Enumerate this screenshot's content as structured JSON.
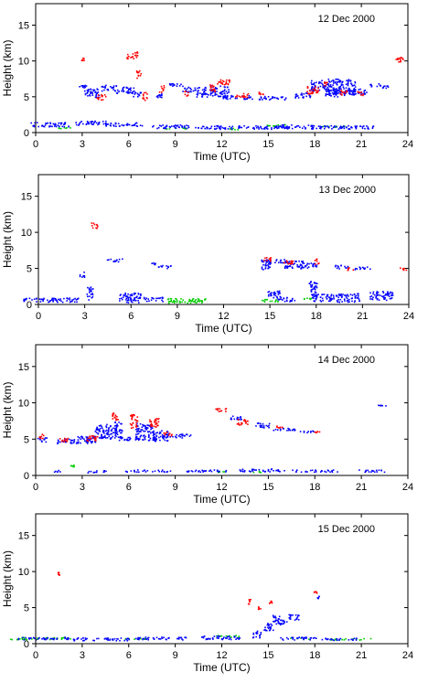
{
  "chart_data": [
    {
      "type": "scatter",
      "title": "12 Dec 2000",
      "xlabel": "Time (UTC)",
      "ylabel": "Height (km)",
      "xlim": [
        0,
        24
      ],
      "ylim": [
        0,
        18
      ],
      "xticks": [
        "0",
        "3",
        "6",
        "9",
        "12",
        "15",
        "18",
        "21",
        "24"
      ],
      "yticks": [
        "0",
        "5",
        "10",
        "15"
      ],
      "colors": {
        "blue": "#0000ff",
        "red": "#ff0000",
        "green": "#00cc00"
      },
      "blue": [
        [
          3.0,
          6.6,
          0.5,
          0.6
        ],
        [
          3.6,
          5.6,
          1.0,
          1.2
        ],
        [
          4.7,
          6.3,
          1.0,
          0.8
        ],
        [
          5.8,
          6.0,
          1.3,
          0.9
        ],
        [
          6.5,
          5.4,
          0.6,
          0.6
        ],
        [
          7.8,
          5.2,
          0.6,
          0.6
        ],
        [
          9.0,
          6.7,
          1.0,
          0.5
        ],
        [
          10.2,
          6.1,
          1.5,
          0.7
        ],
        [
          10.8,
          5.4,
          0.9,
          0.8
        ],
        [
          11.8,
          5.8,
          1.3,
          1.6
        ],
        [
          13.0,
          5.0,
          2.0,
          0.5
        ],
        [
          15.2,
          4.9,
          1.9,
          0.5
        ],
        [
          17.2,
          5.3,
          1.0,
          0.8
        ],
        [
          18.3,
          6.6,
          1.3,
          1.5
        ],
        [
          19.1,
          5.6,
          0.9,
          1.2
        ],
        [
          19.7,
          6.4,
          1.8,
          2.3
        ],
        [
          20.7,
          5.8,
          1.2,
          0.8
        ],
        [
          21.9,
          6.7,
          0.8,
          0.4
        ],
        [
          22.5,
          6.5,
          0.7,
          0.4
        ],
        [
          0.9,
          1.2,
          2.5,
          0.6
        ],
        [
          3.5,
          1.4,
          2.0,
          0.6
        ],
        [
          5.6,
          1.2,
          2.8,
          0.5
        ],
        [
          8.6,
          0.9,
          2.5,
          0.5
        ],
        [
          11.4,
          0.8,
          2.5,
          0.5
        ],
        [
          14.2,
          0.8,
          2.5,
          0.5
        ],
        [
          17.0,
          0.9,
          3.0,
          0.6
        ],
        [
          20.0,
          0.8,
          3.6,
          0.5
        ]
      ],
      "red": [
        [
          3.0,
          10.2,
          0.2,
          0.6
        ],
        [
          4.2,
          5.0,
          0.6,
          0.8
        ],
        [
          6.2,
          10.9,
          0.7,
          1.0
        ],
        [
          6.6,
          8.2,
          0.3,
          1.2
        ],
        [
          7.0,
          5.2,
          0.3,
          1.2
        ],
        [
          8.1,
          6.2,
          0.3,
          1.0
        ],
        [
          9.7,
          5.5,
          0.3,
          0.8
        ],
        [
          11.4,
          6.2,
          0.4,
          1.2
        ],
        [
          12.1,
          7.1,
          0.9,
          0.8
        ],
        [
          13.3,
          5.3,
          0.9,
          0.6
        ],
        [
          14.5,
          5.6,
          0.5,
          0.4
        ],
        [
          17.8,
          6.0,
          0.8,
          1.1
        ],
        [
          18.6,
          6.9,
          0.3,
          0.6
        ],
        [
          19.8,
          5.7,
          0.5,
          0.8
        ],
        [
          20.9,
          5.5,
          0.4,
          0.6
        ],
        [
          23.4,
          10.3,
          0.6,
          0.7
        ]
      ],
      "green": [
        [
          2.0,
          0.7,
          1.2,
          0.2
        ],
        [
          9.0,
          0.7,
          1.5,
          0.2
        ],
        [
          12.5,
          0.6,
          1.0,
          0.2
        ],
        [
          15.5,
          1.1,
          1.3,
          0.3
        ],
        [
          19.1,
          0.9,
          1.6,
          0.2
        ]
      ]
    },
    {
      "type": "scatter",
      "title": "13 Dec 2000",
      "xlabel": "Time (UTC)",
      "ylabel": "Height (km)",
      "xlim": [
        0,
        24
      ],
      "ylim": [
        0,
        18
      ],
      "xticks": [
        "0",
        "3",
        "6",
        "9",
        "12",
        "15",
        "18",
        "21",
        "24"
      ],
      "yticks": [
        "0",
        "5",
        "10",
        "15"
      ],
      "colors": {
        "blue": "#0000ff",
        "red": "#ff0000",
        "green": "#00cc00"
      },
      "blue": [
        [
          2.8,
          4.3,
          0.3,
          0.9
        ],
        [
          3.3,
          1.6,
          0.4,
          1.8
        ],
        [
          4.8,
          6.2,
          1.2,
          0.4
        ],
        [
          7.4,
          5.7,
          0.4,
          0.3
        ],
        [
          8.1,
          5.3,
          0.9,
          0.4
        ],
        [
          0.8,
          0.7,
          3.6,
          0.6
        ],
        [
          5.9,
          1.0,
          1.4,
          1.4
        ],
        [
          7.4,
          0.8,
          1.3,
          0.6
        ],
        [
          14.7,
          5.6,
          0.6,
          1.4
        ],
        [
          15.3,
          6.1,
          1.3,
          0.6
        ],
        [
          16.5,
          5.6,
          1.2,
          1.2
        ],
        [
          17.4,
          5.5,
          1.2,
          0.7
        ],
        [
          15.2,
          1.5,
          0.9,
          1.0
        ],
        [
          16.0,
          0.8,
          1.2,
          0.6
        ],
        [
          17.8,
          2.2,
          0.6,
          2.2
        ],
        [
          18.4,
          1.0,
          1.5,
          1.0
        ],
        [
          19.6,
          5.3,
          0.9,
          0.5
        ],
        [
          21.0,
          5.1,
          1.2,
          0.4
        ],
        [
          20.0,
          1.0,
          1.6,
          1.2
        ],
        [
          22.2,
          1.3,
          1.5,
          1.3
        ]
      ],
      "red": [
        [
          3.6,
          11.0,
          0.4,
          0.8
        ],
        [
          14.8,
          6.4,
          0.5,
          0.6
        ],
        [
          16.2,
          6.0,
          0.7,
          0.6
        ],
        [
          18.0,
          6.0,
          0.3,
          0.8
        ],
        [
          20.2,
          5.0,
          0.4,
          0.4
        ],
        [
          23.6,
          5.0,
          0.5,
          0.4
        ]
      ],
      "green": [
        [
          9.5,
          0.6,
          2.6,
          0.7
        ],
        [
          15.0,
          0.6,
          1.1,
          0.4
        ],
        [
          17.5,
          0.9,
          1.0,
          0.2
        ]
      ]
    },
    {
      "type": "scatter",
      "title": "14 Dec 2000",
      "xlabel": "Time (UTC)",
      "ylabel": "Height (km)",
      "xlim": [
        0,
        24
      ],
      "ylim": [
        0,
        18
      ],
      "xticks": [
        "0",
        "3",
        "6",
        "9",
        "12",
        "15",
        "18",
        "21",
        "24"
      ],
      "yticks": [
        "0",
        "5",
        "10",
        "15"
      ],
      "colors": {
        "blue": "#0000ff",
        "red": "#ff0000",
        "green": "#00cc00"
      },
      "blue": [
        [
          0.4,
          5.0,
          0.6,
          0.7
        ],
        [
          2.1,
          4.8,
          1.6,
          0.6
        ],
        [
          3.2,
          5.0,
          1.3,
          1.0
        ],
        [
          4.5,
          6.1,
          1.4,
          2.0
        ],
        [
          5.3,
          6.3,
          0.5,
          2.3
        ],
        [
          5.7,
          5.1,
          0.9,
          0.5
        ],
        [
          7.0,
          6.1,
          1.2,
          2.4
        ],
        [
          8.0,
          5.5,
          1.0,
          1.5
        ],
        [
          9.2,
          5.5,
          1.6,
          0.6
        ],
        [
          12.8,
          8.0,
          1.0,
          0.5
        ],
        [
          14.6,
          7.0,
          0.9,
          0.7
        ],
        [
          16.0,
          6.4,
          1.4,
          0.4
        ],
        [
          17.5,
          6.1,
          1.0,
          0.3
        ],
        [
          22.3,
          9.6,
          0.5,
          0.3
        ],
        [
          1.3,
          0.7,
          0.6,
          0.3
        ],
        [
          4.0,
          0.6,
          1.5,
          0.3
        ],
        [
          7.2,
          0.7,
          3.0,
          0.3
        ],
        [
          11.0,
          0.7,
          3.0,
          0.3
        ],
        [
          14.5,
          0.8,
          3.0,
          0.4
        ],
        [
          18.0,
          0.7,
          3.0,
          0.3
        ],
        [
          21.5,
          0.7,
          2.0,
          0.3
        ]
      ],
      "red": [
        [
          0.3,
          5.5,
          0.4,
          0.6
        ],
        [
          1.8,
          4.9,
          0.7,
          0.6
        ],
        [
          3.6,
          5.2,
          0.7,
          0.8
        ],
        [
          5.1,
          8.2,
          0.4,
          1.4
        ],
        [
          6.3,
          7.6,
          0.5,
          2.0
        ],
        [
          7.6,
          7.3,
          0.6,
          1.4
        ],
        [
          8.5,
          5.8,
          0.6,
          0.5
        ],
        [
          11.9,
          9.1,
          0.7,
          0.5
        ],
        [
          13.3,
          7.4,
          0.7,
          0.8
        ],
        [
          15.7,
          6.8,
          0.6,
          0.4
        ],
        [
          18.1,
          6.1,
          0.5,
          0.3
        ]
      ],
      "green": [
        [
          2.3,
          1.4,
          0.3,
          0.3
        ],
        [
          11.9,
          0.6,
          0.9,
          0.3
        ],
        [
          14.2,
          0.6,
          1.0,
          0.2
        ]
      ]
    },
    {
      "type": "scatter",
      "title": "15 Dec 2000",
      "xlabel": "Time (UTC)",
      "ylabel": "Height (km)",
      "xlim": [
        0,
        24
      ],
      "ylim": [
        0,
        18
      ],
      "xticks": [
        "0",
        "3",
        "6",
        "9",
        "12",
        "15",
        "18",
        "21",
        "24"
      ],
      "yticks": [
        "0",
        "5",
        "10",
        "15"
      ],
      "colors": {
        "blue": "#0000ff",
        "red": "#ff0000",
        "green": "#00cc00"
      },
      "blue": [
        [
          14.2,
          1.4,
          0.6,
          1.0
        ],
        [
          15.0,
          2.4,
          0.7,
          1.0
        ],
        [
          15.4,
          3.6,
          0.6,
          0.9
        ],
        [
          15.8,
          3.1,
          0.8,
          0.8
        ],
        [
          16.6,
          3.8,
          0.7,
          0.9
        ],
        [
          18.2,
          6.5,
          0.2,
          0.3
        ],
        [
          0.5,
          0.8,
          3.5,
          0.4
        ],
        [
          4.2,
          0.7,
          3.8,
          0.4
        ],
        [
          8.1,
          0.8,
          3.5,
          0.4
        ],
        [
          11.8,
          0.9,
          2.7,
          0.5
        ],
        [
          17.0,
          0.8,
          2.5,
          0.4
        ],
        [
          19.5,
          0.7,
          2.5,
          0.3
        ]
      ],
      "red": [
        [
          1.4,
          9.8,
          0.2,
          0.4
        ],
        [
          13.8,
          5.9,
          0.3,
          0.8
        ],
        [
          14.4,
          5.0,
          0.2,
          0.4
        ],
        [
          15.1,
          5.8,
          0.2,
          0.4
        ],
        [
          18.0,
          7.2,
          0.2,
          0.4
        ]
      ],
      "green": [
        [
          0.3,
          0.8,
          4.0,
          0.3
        ],
        [
          6.3,
          0.8,
          1.5,
          0.2
        ],
        [
          12.3,
          1.1,
          1.6,
          0.3
        ],
        [
          17.0,
          0.8,
          1.2,
          0.2
        ],
        [
          20.5,
          0.7,
          3.0,
          0.2
        ]
      ]
    }
  ]
}
